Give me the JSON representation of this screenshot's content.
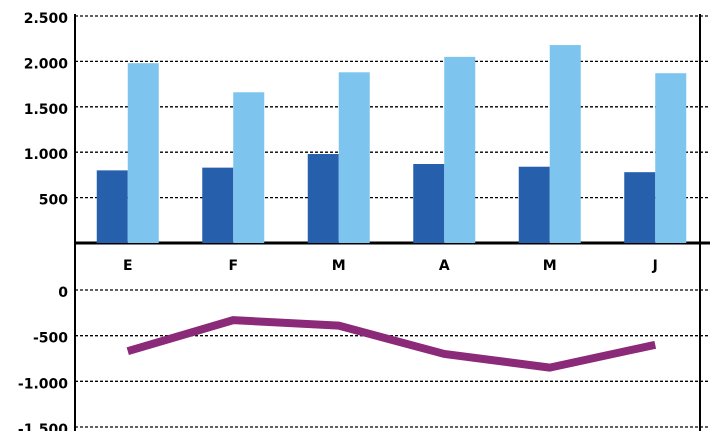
{
  "chart_data": [
    {
      "type": "bar",
      "categories": [
        "E",
        "F",
        "M",
        "A",
        "M",
        "J"
      ],
      "series": [
        {
          "color": "#2660ac",
          "values": [
            800,
            830,
            980,
            870,
            840,
            780
          ]
        },
        {
          "color": "#7dc4ee",
          "values": [
            1980,
            1660,
            1880,
            2050,
            2180,
            1870
          ]
        }
      ],
      "ylim": [
        0,
        2500
      ],
      "yticks": [
        {
          "value": 2500,
          "label": "2.500"
        },
        {
          "value": 2000,
          "label": "2.000"
        },
        {
          "value": 1500,
          "label": "1.500"
        },
        {
          "value": 1000,
          "label": "1.000"
        },
        500
      ],
      "grid": true
    },
    {
      "type": "line",
      "series": [
        {
          "color": "#8b2a78",
          "values": [
            -670,
            -330,
            -390,
            -700,
            -850,
            -600
          ]
        }
      ],
      "ylim": [
        -1500,
        0
      ],
      "yticks": [
        0,
        -500,
        {
          "value": -1000,
          "label": "-1.000"
        },
        {
          "value": -1500,
          "label": "-1.500"
        }
      ],
      "grid": true
    }
  ]
}
